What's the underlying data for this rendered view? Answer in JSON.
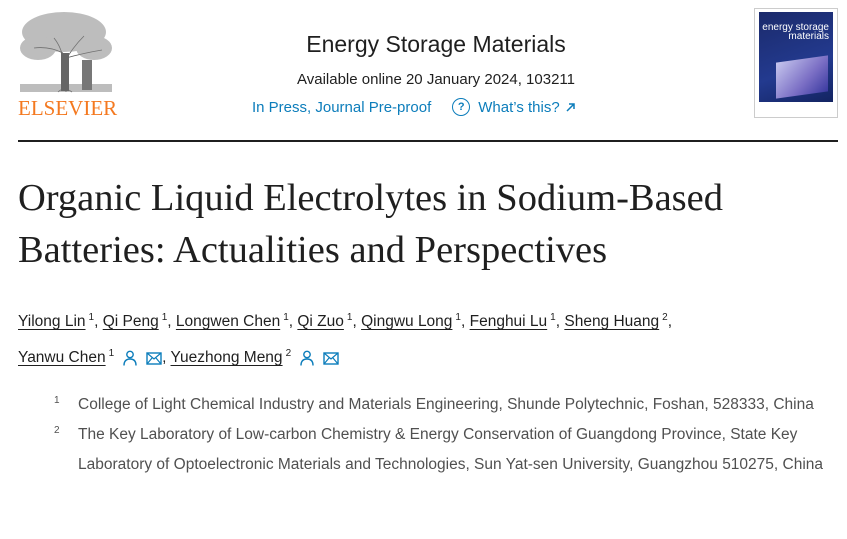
{
  "header": {
    "publisher_logo_text": "ELSEVIER",
    "journal_title": "Energy Storage Materials",
    "availability": "Available online 20 January 2024, 103211",
    "status_link": "In Press, Journal Pre-proof",
    "help_link": "What’s this?",
    "cover_title": "energy storage materials",
    "brand_color": "#f47920",
    "link_color": "#0c7dbb"
  },
  "article": {
    "title": "Organic Liquid Electrolytes in Sodium-Based Batteries: Actualities and Perspectives",
    "authors": [
      {
        "name": "Yilong Lin",
        "aff": "1"
      },
      {
        "name": "Qi Peng",
        "aff": "1"
      },
      {
        "name": "Longwen Chen",
        "aff": "1"
      },
      {
        "name": "Qi Zuo",
        "aff": "1"
      },
      {
        "name": "Qingwu Long",
        "aff": "1"
      },
      {
        "name": "Fenghui Lu",
        "aff": "1"
      },
      {
        "name": "Sheng Huang",
        "aff": "2"
      },
      {
        "name": "Yanwu Chen",
        "aff": "1",
        "icons": [
          "person-icon",
          "email-icon"
        ]
      },
      {
        "name": "Yuezhong Meng",
        "aff": "2",
        "icons": [
          "person-icon",
          "email-icon"
        ]
      }
    ],
    "affiliations": [
      {
        "num": "1",
        "text": "College of Light Chemical Industry and Materials Engineering, Shunde Polytechnic, Foshan, 528333, China"
      },
      {
        "num": "2",
        "text": "The Key Laboratory of Low-carbon Chemistry & Energy Conservation of Guangdong Province, State Key Laboratory of Optoelectronic Materials and Technologies, Sun Yat-sen University, Guangzhou 510275, China"
      }
    ]
  }
}
